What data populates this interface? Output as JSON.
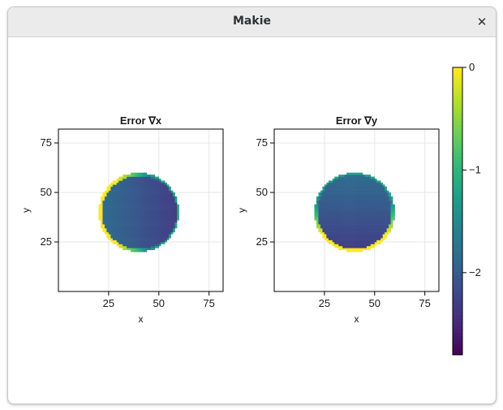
{
  "window": {
    "title": "Makie",
    "close_glyph": "✕",
    "close_icon": "close-icon"
  },
  "colormap": "viridis",
  "chart_data": [
    {
      "type": "heatmap",
      "title": "Error ∇x",
      "xlabel": "x",
      "ylabel": "y",
      "xlim": [
        0,
        82
      ],
      "ylim": [
        0,
        82
      ],
      "xticks": [
        25,
        50,
        75
      ],
      "yticks": [
        25,
        50,
        75
      ],
      "circle": {
        "center": [
          40,
          40
        ],
        "radius": 20
      },
      "gradient_axis": "x",
      "interior_range": [
        -1.8,
        -2.3
      ],
      "rim_value": 0
    },
    {
      "type": "heatmap",
      "title": "Error ∇y",
      "xlabel": "x",
      "ylabel": "y",
      "xlim": [
        0,
        82
      ],
      "ylim": [
        0,
        82
      ],
      "xticks": [
        25,
        50,
        75
      ],
      "yticks": [
        25,
        50,
        75
      ],
      "circle": {
        "center": [
          40,
          40
        ],
        "radius": 20
      },
      "gradient_axis": "y",
      "interior_range": [
        -1.8,
        -2.3
      ],
      "rim_value": 0
    },
    {
      "type": "colorbar",
      "range": [
        -2.8,
        0
      ],
      "ticks": [
        0,
        -1,
        -2
      ],
      "tick_labels": [
        "0",
        "−1",
        "−2"
      ]
    }
  ]
}
